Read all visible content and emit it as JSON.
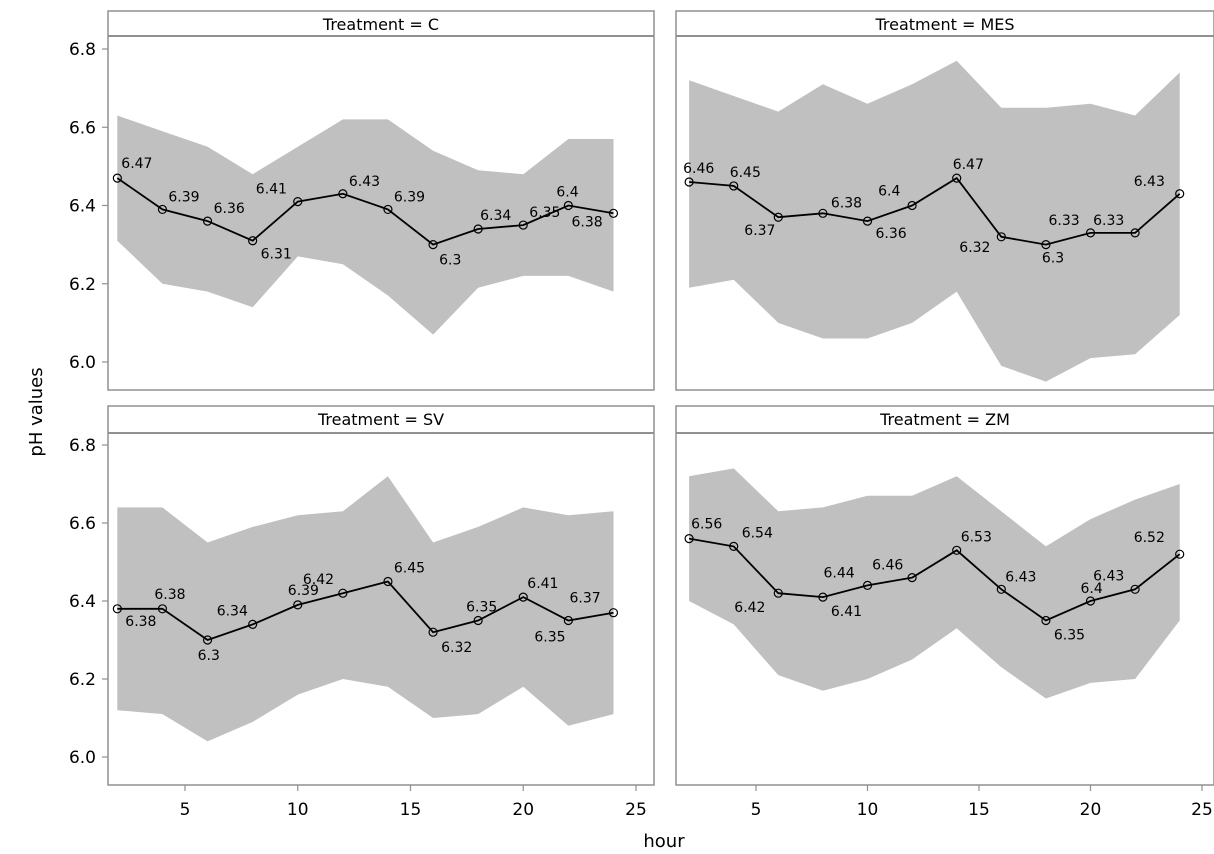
{
  "chart_data": {
    "type": "line",
    "xlabel": "hour",
    "ylabel": "pH values",
    "xlim": [
      1.5,
      25.5
    ],
    "ylim": [
      5.92,
      6.83
    ],
    "x_ticks": [
      5,
      10,
      15,
      20,
      25
    ],
    "y_ticks": [
      6.0,
      6.2,
      6.4,
      6.6,
      6.8
    ],
    "colors": {
      "band": "#c0c0c0",
      "line": "#000000",
      "frame": "#909090"
    },
    "panels": [
      {
        "title": "Treatment = C",
        "x": [
          2,
          4,
          6,
          8,
          10,
          12,
          14,
          16,
          18,
          20,
          22,
          24
        ],
        "y": [
          6.47,
          6.39,
          6.36,
          6.31,
          6.41,
          6.43,
          6.39,
          6.3,
          6.34,
          6.35,
          6.4,
          6.38
        ],
        "labels": [
          "6.47",
          "6.39",
          "6.36",
          "6.31",
          "6.41",
          "6.43",
          "6.39",
          "6.3",
          "6.34",
          "6.35",
          "6.4",
          "6.38"
        ],
        "upper": [
          6.63,
          6.59,
          6.55,
          6.48,
          6.55,
          6.62,
          6.62,
          6.54,
          6.49,
          6.48,
          6.57,
          6.57
        ],
        "lower": [
          6.31,
          6.2,
          6.18,
          6.14,
          6.27,
          6.25,
          6.17,
          6.07,
          6.19,
          6.22,
          6.22,
          6.18
        ]
      },
      {
        "title": "Treatment = MES",
        "x": [
          2,
          4,
          6,
          8,
          10,
          12,
          14,
          16,
          18,
          20,
          22,
          24
        ],
        "y": [
          6.46,
          6.45,
          6.37,
          6.38,
          6.36,
          6.4,
          6.47,
          6.32,
          6.3,
          6.33,
          6.33,
          6.43
        ],
        "labels": [
          "6.46",
          "6.45",
          "6.37",
          "6.38",
          "6.36",
          "6.4",
          "6.47",
          "6.32",
          "6.3",
          "6.33",
          "6.33",
          "6.43"
        ],
        "upper": [
          6.72,
          6.68,
          6.64,
          6.71,
          6.66,
          6.71,
          6.77,
          6.65,
          6.65,
          6.66,
          6.63,
          6.74
        ],
        "lower": [
          6.19,
          6.21,
          6.1,
          6.06,
          6.06,
          6.1,
          6.18,
          5.99,
          5.95,
          6.01,
          6.02,
          6.12
        ]
      },
      {
        "title": "Treatment = SV",
        "x": [
          2,
          4,
          6,
          8,
          10,
          12,
          14,
          16,
          18,
          20,
          22,
          24
        ],
        "y": [
          6.38,
          6.38,
          6.3,
          6.34,
          6.39,
          6.42,
          6.45,
          6.32,
          6.35,
          6.41,
          6.35,
          6.37
        ],
        "labels": [
          "6.38",
          "6.38",
          "6.3",
          "6.34",
          "6.39",
          "6.42",
          "6.45",
          "6.32",
          "6.35",
          "6.41",
          "6.35",
          "6.37"
        ],
        "upper": [
          6.64,
          6.64,
          6.55,
          6.59,
          6.62,
          6.63,
          6.72,
          6.55,
          6.59,
          6.64,
          6.62,
          6.63
        ],
        "lower": [
          6.12,
          6.11,
          6.04,
          6.09,
          6.16,
          6.2,
          6.18,
          6.1,
          6.11,
          6.18,
          6.08,
          6.11
        ]
      },
      {
        "title": "Treatment = ZM",
        "x": [
          2,
          4,
          6,
          8,
          10,
          12,
          14,
          16,
          18,
          20,
          22,
          24
        ],
        "y": [
          6.56,
          6.54,
          6.42,
          6.41,
          6.44,
          6.46,
          6.53,
          6.43,
          6.35,
          6.4,
          6.43,
          6.52
        ],
        "labels": [
          "6.56",
          "6.54",
          "6.42",
          "6.41",
          "6.44",
          "6.46",
          "6.53",
          "6.43",
          "6.35",
          "6.4",
          "6.43",
          "6.52"
        ],
        "upper": [
          6.72,
          6.74,
          6.63,
          6.64,
          6.67,
          6.67,
          6.72,
          6.63,
          6.54,
          6.61,
          6.66,
          6.7
        ],
        "lower": [
          6.4,
          6.34,
          6.21,
          6.17,
          6.2,
          6.25,
          6.33,
          6.23,
          6.15,
          6.19,
          6.2,
          6.35
        ]
      }
    ]
  }
}
